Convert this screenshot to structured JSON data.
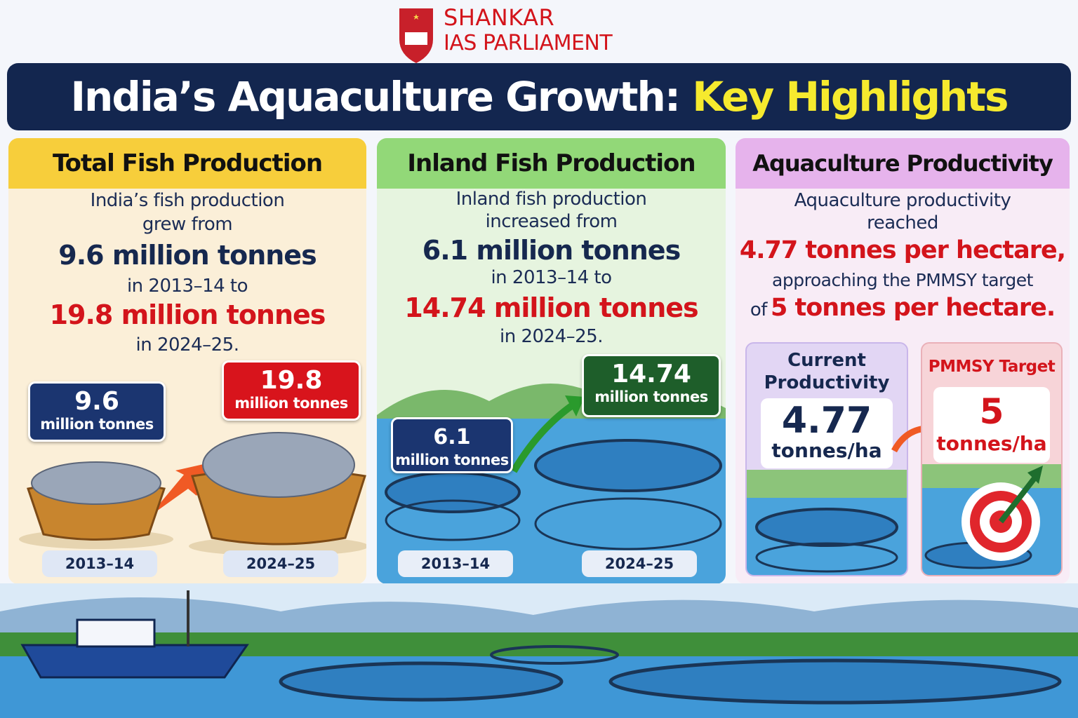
{
  "logo": {
    "line1": "SHANKAR",
    "line2": "IAS PARLIAMENT"
  },
  "header": {
    "title": "India’s Aquaculture Growth:",
    "highlight": "Key Highlights"
  },
  "panels": [
    {
      "heading": "Total Fish Production",
      "text": [
        "India’s fish production",
        "grew from",
        "9.6 million tonnes",
        "in 2013–14 to",
        "19.8 million tonnes",
        "in 2024–25."
      ],
      "start": {
        "value": "9.6",
        "unit": "million tonnes",
        "year": "2013–14"
      },
      "end": {
        "value": "19.8",
        "unit": "million tonnes",
        "year": "2024–25"
      }
    },
    {
      "heading": "Inland Fish Production",
      "text": [
        "Inland fish production",
        "increased from",
        "6.1 million tonnes",
        "in 2013–14 to",
        "14.74 million tonnes",
        "in 2024–25."
      ],
      "start": {
        "value": "6.1",
        "unit": "million tonnes",
        "year": "2013–14"
      },
      "end": {
        "value": "14.74",
        "unit": "million tonnes",
        "year": "2024–25"
      }
    },
    {
      "heading": "Aquaculture Productivity",
      "text": [
        "Aquaculture productivity",
        "reached",
        "4.77 tonnes per hectare,",
        "approaching the PMMSY target",
        "of",
        "5 tonnes per hectare."
      ],
      "current": {
        "label": "Current Productivity",
        "value": "4.77",
        "unit": "tonnes/ha"
      },
      "target": {
        "label": "PMMSY Target",
        "value": "5",
        "unit": "tonnes/ha"
      }
    }
  ]
}
